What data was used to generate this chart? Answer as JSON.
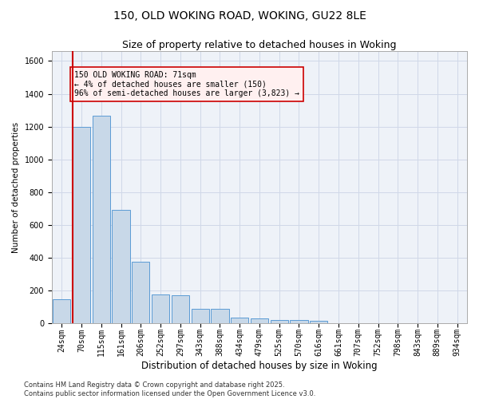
{
  "title": "150, OLD WOKING ROAD, WOKING, GU22 8LE",
  "subtitle": "Size of property relative to detached houses in Woking",
  "xlabel": "Distribution of detached houses by size in Woking",
  "ylabel": "Number of detached properties",
  "bar_color": "#c8d8e8",
  "bar_edge_color": "#5b9bd5",
  "categories": [
    "24sqm",
    "70sqm",
    "115sqm",
    "161sqm",
    "206sqm",
    "252sqm",
    "297sqm",
    "343sqm",
    "388sqm",
    "434sqm",
    "479sqm",
    "525sqm",
    "570sqm",
    "616sqm",
    "661sqm",
    "707sqm",
    "752sqm",
    "798sqm",
    "843sqm",
    "889sqm",
    "934sqm"
  ],
  "values": [
    148,
    1200,
    1265,
    690,
    375,
    175,
    170,
    85,
    85,
    35,
    30,
    20,
    20,
    15,
    0,
    0,
    0,
    0,
    0,
    0,
    0
  ],
  "ylim": [
    0,
    1660
  ],
  "yticks": [
    0,
    200,
    400,
    600,
    800,
    1000,
    1200,
    1400,
    1600
  ],
  "annotation_text": "150 OLD WOKING ROAD: 71sqm\n← 4% of detached houses are smaller (150)\n96% of semi-detached houses are larger (3,823) →",
  "vline_color": "#cc0000",
  "annotation_box_edge": "#cc0000",
  "grid_color": "#d0d8e8",
  "bg_color": "#eef2f8",
  "footer": "Contains HM Land Registry data © Crown copyright and database right 2025.\nContains public sector information licensed under the Open Government Licence v3.0.",
  "title_fontsize": 10,
  "subtitle_fontsize": 9,
  "xlabel_fontsize": 8.5,
  "ylabel_fontsize": 7.5,
  "tick_fontsize": 7,
  "annotation_fontsize": 7,
  "footer_fontsize": 6
}
